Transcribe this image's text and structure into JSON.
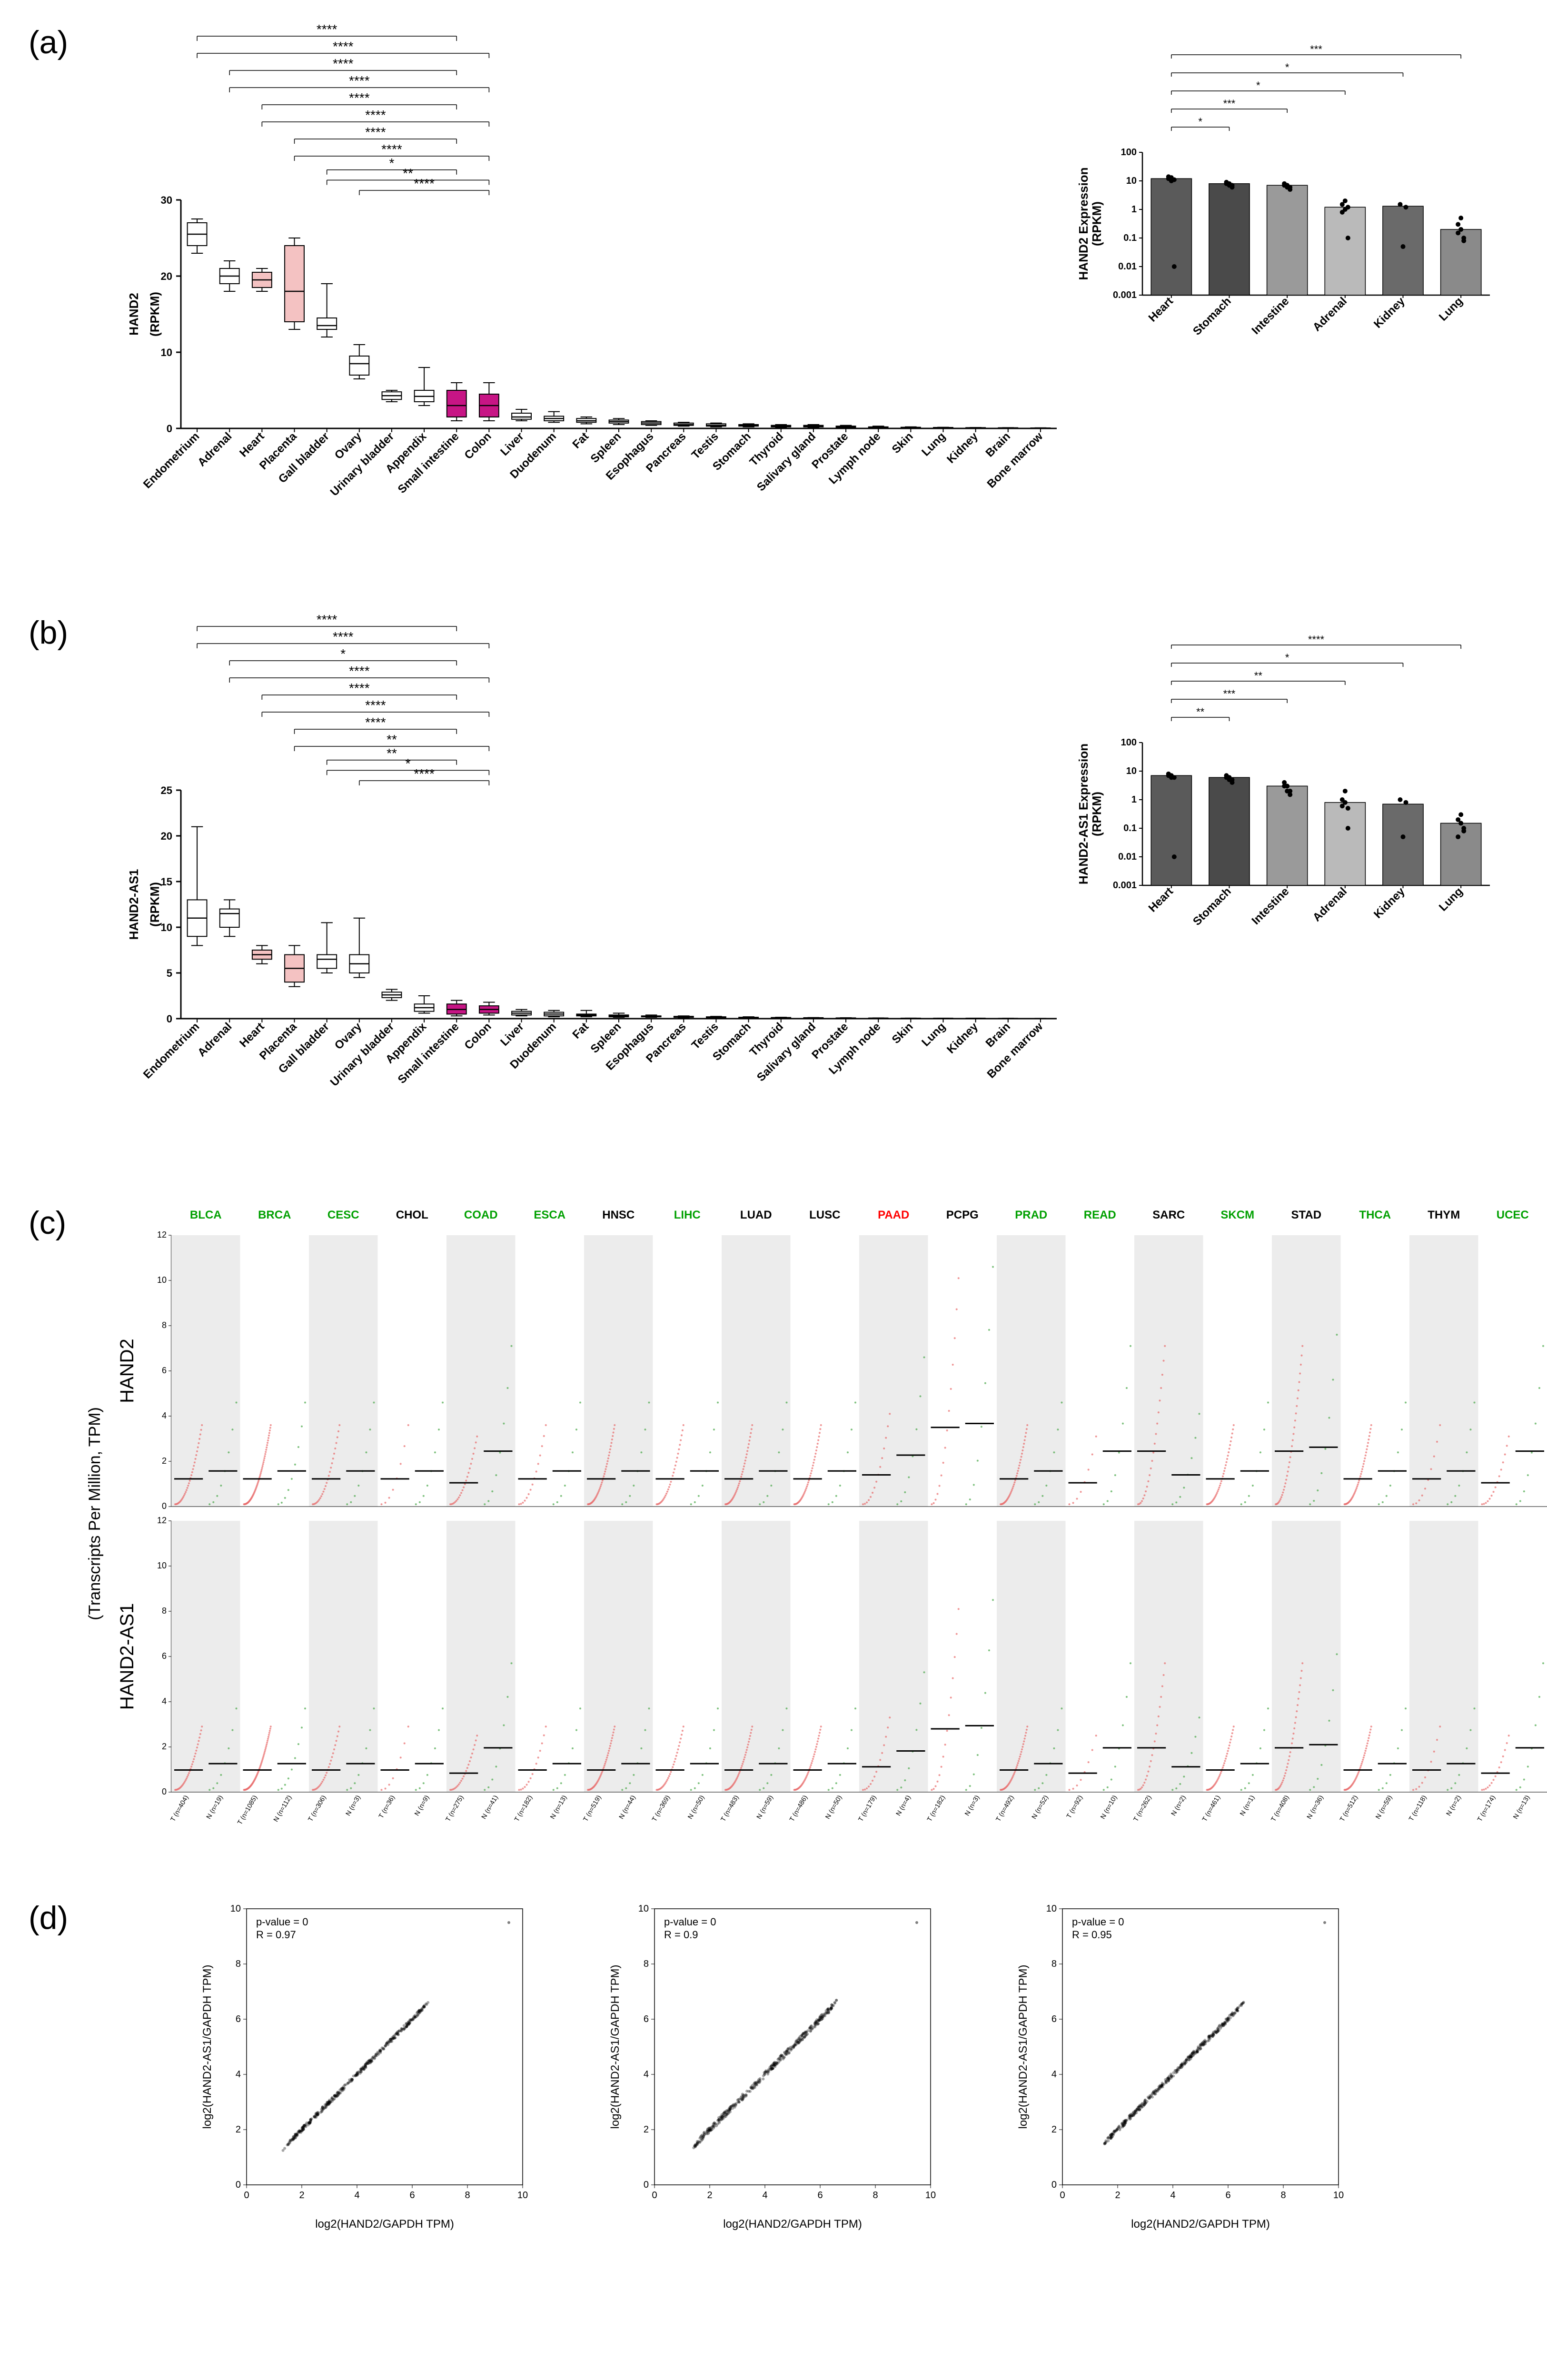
{
  "panelA": {
    "label": "(a)",
    "ylabel": "HAND2\n(RPKM)",
    "ylim": [
      0,
      30
    ],
    "yticks": [
      0,
      10,
      20,
      30
    ],
    "tissues": [
      "Endometrium",
      "Adrenal",
      "Heart",
      "Placenta",
      "Gall bladder",
      "Ovary",
      "Urinary bladder",
      "Appendix",
      "Small intestine",
      "Colon",
      "Liver",
      "Duodenum",
      "Fat",
      "Spleen",
      "Esophagus",
      "Pancreas",
      "Testis",
      "Stomach",
      "Thyroid",
      "Salivary gland",
      "Prostate",
      "Lymph node",
      "Skin",
      "Lung",
      "Kidney",
      "Brain",
      "Bone marrow"
    ],
    "boxes": [
      {
        "q1": 24,
        "med": 25.5,
        "q3": 27,
        "wlo": 23,
        "whi": 27.5,
        "fill": "#ffffff"
      },
      {
        "q1": 19,
        "med": 20,
        "q3": 21,
        "wlo": 18,
        "whi": 22,
        "fill": "#ffffff"
      },
      {
        "q1": 18.5,
        "med": 19.5,
        "q3": 20.5,
        "wlo": 18,
        "whi": 21,
        "fill": "#f4c2c2"
      },
      {
        "q1": 14,
        "med": 18,
        "q3": 24,
        "wlo": 13,
        "whi": 25,
        "fill": "#f4c2c2"
      },
      {
        "q1": 13,
        "med": 13.5,
        "q3": 14.5,
        "wlo": 12,
        "whi": 19,
        "fill": "#ffffff"
      },
      {
        "q1": 7,
        "med": 8.5,
        "q3": 9.5,
        "wlo": 6.5,
        "whi": 11,
        "fill": "#ffffff"
      },
      {
        "q1": 3.8,
        "med": 4.3,
        "q3": 4.8,
        "wlo": 3.5,
        "whi": 5,
        "fill": "#ffffff"
      },
      {
        "q1": 3.5,
        "med": 4.2,
        "q3": 5,
        "wlo": 3,
        "whi": 8,
        "fill": "#ffffff"
      },
      {
        "q1": 1.5,
        "med": 3,
        "q3": 5,
        "wlo": 1,
        "whi": 6,
        "fill": "#c71585"
      },
      {
        "q1": 1.5,
        "med": 3,
        "q3": 4.5,
        "wlo": 1,
        "whi": 6,
        "fill": "#c71585"
      },
      {
        "q1": 1.2,
        "med": 1.5,
        "q3": 2,
        "wlo": 1,
        "whi": 2.5,
        "fill": "#ffffff"
      },
      {
        "q1": 1,
        "med": 1.3,
        "q3": 1.6,
        "wlo": 0.8,
        "whi": 2.2,
        "fill": "#ffffff"
      },
      {
        "q1": 0.8,
        "med": 1,
        "q3": 1.3,
        "wlo": 0.6,
        "whi": 1.5,
        "fill": "#ffffff"
      },
      {
        "q1": 0.7,
        "med": 0.9,
        "q3": 1.1,
        "wlo": 0.5,
        "whi": 1.3,
        "fill": "#ffffff"
      },
      {
        "q1": 0.5,
        "med": 0.7,
        "q3": 0.9,
        "wlo": 0.4,
        "whi": 1,
        "fill": "#ffffff"
      },
      {
        "q1": 0.4,
        "med": 0.5,
        "q3": 0.7,
        "wlo": 0.3,
        "whi": 0.8,
        "fill": "#ffffff"
      },
      {
        "q1": 0.3,
        "med": 0.4,
        "q3": 0.6,
        "wlo": 0.2,
        "whi": 0.7,
        "fill": "#ffffff"
      },
      {
        "q1": 0.3,
        "med": 0.4,
        "q3": 0.5,
        "wlo": 0.2,
        "whi": 0.6,
        "fill": "#ffffff"
      },
      {
        "q1": 0.2,
        "med": 0.3,
        "q3": 0.4,
        "wlo": 0.15,
        "whi": 0.5,
        "fill": "#ffffff"
      },
      {
        "q1": 0.2,
        "med": 0.3,
        "q3": 0.4,
        "wlo": 0.15,
        "whi": 0.5,
        "fill": "#ffffff"
      },
      {
        "q1": 0.15,
        "med": 0.2,
        "q3": 0.3,
        "wlo": 0.1,
        "whi": 0.4,
        "fill": "#ffffff"
      },
      {
        "q1": 0.1,
        "med": 0.15,
        "q3": 0.2,
        "wlo": 0.08,
        "whi": 0.3,
        "fill": "#ffffff"
      },
      {
        "q1": 0.1,
        "med": 0.12,
        "q3": 0.15,
        "wlo": 0.05,
        "whi": 0.2,
        "fill": "#ffffff"
      },
      {
        "q1": 0.08,
        "med": 0.1,
        "q3": 0.12,
        "wlo": 0.05,
        "whi": 0.15,
        "fill": "#ffffff"
      },
      {
        "q1": 0.05,
        "med": 0.08,
        "q3": 0.1,
        "wlo": 0.03,
        "whi": 0.12,
        "fill": "#ffffff"
      },
      {
        "q1": 0.04,
        "med": 0.06,
        "q3": 0.08,
        "wlo": 0.02,
        "whi": 0.1,
        "fill": "#ffffff"
      },
      {
        "q1": 0.02,
        "med": 0.04,
        "q3": 0.06,
        "wlo": 0.01,
        "whi": 0.08,
        "fill": "#ffffff"
      }
    ],
    "sig_brackets": [
      {
        "from": 0,
        "to": 8,
        "level": 9,
        "label": "****"
      },
      {
        "from": 0,
        "to": 9,
        "level": 8,
        "label": "****"
      },
      {
        "from": 1,
        "to": 8,
        "level": 7,
        "label": "****"
      },
      {
        "from": 1,
        "to": 9,
        "level": 6,
        "label": "****"
      },
      {
        "from": 2,
        "to": 8,
        "level": 5,
        "label": "****"
      },
      {
        "from": 2,
        "to": 9,
        "level": 4,
        "label": "****"
      },
      {
        "from": 3,
        "to": 8,
        "level": 3,
        "label": "****"
      },
      {
        "from": 3,
        "to": 9,
        "level": 2,
        "label": "****"
      },
      {
        "from": 4,
        "to": 8,
        "level": 1.2,
        "label": "*"
      },
      {
        "from": 4,
        "to": 9,
        "level": 0.6,
        "label": "**"
      },
      {
        "from": 5,
        "to": 9,
        "level": 0,
        "label": "****"
      }
    ],
    "inset": {
      "ylabel": "HAND2 Expression\n(RPKM)",
      "log_ticks": [
        0.001,
        0.01,
        0.1,
        1,
        10,
        100
      ],
      "bars": [
        "Heart",
        "Stomach",
        "Intestine",
        "Adrenal",
        "Kidney",
        "Lung"
      ],
      "values": [
        12,
        8,
        7,
        1.2,
        1.3,
        0.2
      ],
      "points": [
        [
          14,
          13,
          11,
          12,
          10,
          0.01
        ],
        [
          9,
          8,
          7,
          8,
          7,
          6
        ],
        [
          8,
          7,
          6,
          7,
          6,
          5
        ],
        [
          1.5,
          1,
          0.1,
          0.8,
          2,
          1.2
        ],
        [
          1.5,
          0.05,
          1.2
        ],
        [
          0.3,
          0.2,
          0.1,
          0.15,
          0.5,
          0.08
        ]
      ],
      "sig": [
        {
          "from": 0,
          "to": 5,
          "level": 5,
          "label": "***"
        },
        {
          "from": 0,
          "to": 4,
          "level": 4,
          "label": "*"
        },
        {
          "from": 0,
          "to": 3,
          "level": 3,
          "label": "*"
        },
        {
          "from": 0,
          "to": 2,
          "level": 2,
          "label": "***"
        },
        {
          "from": 0,
          "to": 1,
          "level": 1,
          "label": "*"
        }
      ],
      "colors": [
        "#5a5a5a",
        "#4a4a4a",
        "#9a9a9a",
        "#bababa",
        "#6a6a6a",
        "#8a8a8a"
      ]
    }
  },
  "panelB": {
    "label": "(b)",
    "ylabel": "HAND2-AS1\n(RPKM)",
    "ylim": [
      0,
      25
    ],
    "yticks": [
      0,
      5,
      10,
      15,
      20,
      25
    ],
    "tissues": [
      "Endometrium",
      "Adrenal",
      "Heart",
      "Placenta",
      "Gall bladder",
      "Ovary",
      "Urinary bladder",
      "Appendix",
      "Small intestine",
      "Colon",
      "Liver",
      "Duodenum",
      "Fat",
      "Spleen",
      "Esophagus",
      "Pancreas",
      "Testis",
      "Stomach",
      "Thyroid",
      "Salivary gland",
      "Prostate",
      "Lymph node",
      "Skin",
      "Lung",
      "Kidney",
      "Brain",
      "Bone marrow"
    ],
    "boxes": [
      {
        "q1": 9,
        "med": 11,
        "q3": 13,
        "wlo": 8,
        "whi": 21,
        "fill": "#ffffff"
      },
      {
        "q1": 10,
        "med": 11.5,
        "q3": 12,
        "wlo": 9,
        "whi": 13,
        "fill": "#ffffff"
      },
      {
        "q1": 6.5,
        "med": 7,
        "q3": 7.5,
        "wlo": 6,
        "whi": 8,
        "fill": "#f4c2c2"
      },
      {
        "q1": 4,
        "med": 5.5,
        "q3": 7,
        "wlo": 3.5,
        "whi": 8,
        "fill": "#f4c2c2"
      },
      {
        "q1": 5.5,
        "med": 6.5,
        "q3": 7,
        "wlo": 5,
        "whi": 10.5,
        "fill": "#ffffff"
      },
      {
        "q1": 5,
        "med": 6,
        "q3": 7,
        "wlo": 4.5,
        "whi": 11,
        "fill": "#ffffff"
      },
      {
        "q1": 2.3,
        "med": 2.6,
        "q3": 2.9,
        "wlo": 2,
        "whi": 3.2,
        "fill": "#ffffff"
      },
      {
        "q1": 0.8,
        "med": 1.2,
        "q3": 1.6,
        "wlo": 0.6,
        "whi": 2.5,
        "fill": "#ffffff"
      },
      {
        "q1": 0.5,
        "med": 1,
        "q3": 1.6,
        "wlo": 0.3,
        "whi": 2,
        "fill": "#c71585"
      },
      {
        "q1": 0.6,
        "med": 1,
        "q3": 1.4,
        "wlo": 0.4,
        "whi": 1.8,
        "fill": "#c71585"
      },
      {
        "q1": 0.4,
        "med": 0.6,
        "q3": 0.8,
        "wlo": 0.3,
        "whi": 1,
        "fill": "#ffffff"
      },
      {
        "q1": 0.3,
        "med": 0.5,
        "q3": 0.7,
        "wlo": 0.2,
        "whi": 0.9,
        "fill": "#ffffff"
      },
      {
        "q1": 0.3,
        "med": 0.4,
        "q3": 0.5,
        "wlo": 0.2,
        "whi": 0.9,
        "fill": "#ffffff"
      },
      {
        "q1": 0.2,
        "med": 0.3,
        "q3": 0.4,
        "wlo": 0.15,
        "whi": 0.6,
        "fill": "#ffffff"
      },
      {
        "q1": 0.2,
        "med": 0.25,
        "q3": 0.3,
        "wlo": 0.15,
        "whi": 0.4,
        "fill": "#ffffff"
      },
      {
        "q1": 0.15,
        "med": 0.2,
        "q3": 0.25,
        "wlo": 0.1,
        "whi": 0.3,
        "fill": "#ffffff"
      },
      {
        "q1": 0.1,
        "med": 0.15,
        "q3": 0.2,
        "wlo": 0.08,
        "whi": 0.25,
        "fill": "#ffffff"
      },
      {
        "q1": 0.1,
        "med": 0.12,
        "q3": 0.15,
        "wlo": 0.08,
        "whi": 0.2,
        "fill": "#ffffff"
      },
      {
        "q1": 0.08,
        "med": 0.1,
        "q3": 0.12,
        "wlo": 0.05,
        "whi": 0.15,
        "fill": "#ffffff"
      },
      {
        "q1": 0.06,
        "med": 0.08,
        "q3": 0.1,
        "wlo": 0.04,
        "whi": 0.12,
        "fill": "#ffffff"
      },
      {
        "q1": 0.05,
        "med": 0.06,
        "q3": 0.08,
        "wlo": 0.03,
        "whi": 0.1,
        "fill": "#ffffff"
      },
      {
        "q1": 0.04,
        "med": 0.05,
        "q3": 0.06,
        "wlo": 0.02,
        "whi": 0.08,
        "fill": "#ffffff"
      },
      {
        "q1": 0.03,
        "med": 0.04,
        "q3": 0.05,
        "wlo": 0.02,
        "whi": 0.06,
        "fill": "#ffffff"
      },
      {
        "q1": 0.02,
        "med": 0.03,
        "q3": 0.04,
        "wlo": 0.01,
        "whi": 0.05,
        "fill": "#ffffff"
      },
      {
        "q1": 0.02,
        "med": 0.03,
        "q3": 0.04,
        "wlo": 0.01,
        "whi": 0.05,
        "fill": "#ffffff"
      },
      {
        "q1": 0.01,
        "med": 0.02,
        "q3": 0.03,
        "wlo": 0.005,
        "whi": 0.04,
        "fill": "#ffffff"
      },
      {
        "q1": 0.01,
        "med": 0.015,
        "q3": 0.02,
        "wlo": 0.005,
        "whi": 0.03,
        "fill": "#ffffff"
      }
    ],
    "sig_brackets": [
      {
        "from": 0,
        "to": 8,
        "level": 9,
        "label": "****"
      },
      {
        "from": 0,
        "to": 9,
        "level": 8,
        "label": "****"
      },
      {
        "from": 1,
        "to": 8,
        "level": 7,
        "label": "*"
      },
      {
        "from": 1,
        "to": 9,
        "level": 6,
        "label": "****"
      },
      {
        "from": 2,
        "to": 8,
        "level": 5,
        "label": "****"
      },
      {
        "from": 2,
        "to": 9,
        "level": 4,
        "label": "****"
      },
      {
        "from": 3,
        "to": 8,
        "level": 3,
        "label": "****"
      },
      {
        "from": 3,
        "to": 9,
        "level": 2,
        "label": "**"
      },
      {
        "from": 4,
        "to": 8,
        "level": 1.2,
        "label": "**"
      },
      {
        "from": 4,
        "to": 9,
        "level": 0.6,
        "label": "*"
      },
      {
        "from": 5,
        "to": 9,
        "level": 0,
        "label": "****"
      }
    ],
    "inset": {
      "ylabel": "HAND2-AS1 Expression\n(RPKM)",
      "log_ticks": [
        0.001,
        0.01,
        0.1,
        1,
        10,
        100
      ],
      "bars": [
        "Heart",
        "Stomach",
        "Intestine",
        "Adrenal",
        "Kidney",
        "Lung"
      ],
      "values": [
        7,
        6,
        3,
        0.8,
        0.7,
        0.15
      ],
      "points": [
        [
          8,
          7,
          6,
          7,
          6,
          0.01
        ],
        [
          7,
          6,
          5,
          6,
          5,
          4
        ],
        [
          4,
          3,
          2,
          3,
          2,
          1.5
        ],
        [
          1,
          0.8,
          0.1,
          0.6,
          2,
          0.5
        ],
        [
          1,
          0.05,
          0.8
        ],
        [
          0.2,
          0.15,
          0.1,
          0.05,
          0.3,
          0.08
        ]
      ],
      "sig": [
        {
          "from": 0,
          "to": 5,
          "level": 5,
          "label": "****"
        },
        {
          "from": 0,
          "to": 4,
          "level": 4,
          "label": "*"
        },
        {
          "from": 0,
          "to": 3,
          "level": 3,
          "label": "**"
        },
        {
          "from": 0,
          "to": 2,
          "level": 2,
          "label": "***"
        },
        {
          "from": 0,
          "to": 1,
          "level": 1,
          "label": "**"
        }
      ],
      "colors": [
        "#5a5a5a",
        "#4a4a4a",
        "#9a9a9a",
        "#bababa",
        "#6a6a6a",
        "#8a8a8a"
      ]
    }
  },
  "panelC": {
    "label": "(c)",
    "ylabel_shared": "(Transcripts Per Million, TPM)",
    "row_labels": [
      "HAND2",
      "HAND2-AS1"
    ],
    "cancers": [
      {
        "code": "BLCA",
        "color": "#00a000",
        "nT": 404,
        "nN": 19
      },
      {
        "code": "BRCA",
        "color": "#00a000",
        "nT": 1085,
        "nN": 112
      },
      {
        "code": "CESC",
        "color": "#00a000",
        "nT": 306,
        "nN": 3
      },
      {
        "code": "CHOL",
        "color": "#000000",
        "nT": 36,
        "nN": 9
      },
      {
        "code": "COAD",
        "color": "#00a000",
        "nT": 275,
        "nN": 41
      },
      {
        "code": "ESCA",
        "color": "#00a000",
        "nT": 182,
        "nN": 13
      },
      {
        "code": "HNSC",
        "color": "#000000",
        "nT": 519,
        "nN": 44
      },
      {
        "code": "LIHC",
        "color": "#00a000",
        "nT": 369,
        "nN": 50
      },
      {
        "code": "LUAD",
        "color": "#000000",
        "nT": 483,
        "nN": 59
      },
      {
        "code": "LUSC",
        "color": "#000000",
        "nT": 486,
        "nN": 50
      },
      {
        "code": "PAAD",
        "color": "#ff0000",
        "nT": 179,
        "nN": 4
      },
      {
        "code": "PCPG",
        "color": "#000000",
        "nT": 182,
        "nN": 3
      },
      {
        "code": "PRAD",
        "color": "#00a000",
        "nT": 492,
        "nN": 52
      },
      {
        "code": "READ",
        "color": "#00a000",
        "nT": 92,
        "nN": 10
      },
      {
        "code": "SARC",
        "color": "#000000",
        "nT": 262,
        "nN": 2
      },
      {
        "code": "SKCM",
        "color": "#00a000",
        "nT": 461,
        "nN": 1
      },
      {
        "code": "STAD",
        "color": "#000000",
        "nT": 408,
        "nN": 36
      },
      {
        "code": "THCA",
        "color": "#00a000",
        "nT": 512,
        "nN": 59
      },
      {
        "code": "THYM",
        "color": "#000000",
        "nT": 118,
        "nN": 2
      },
      {
        "code": "UCEC",
        "color": "#00a000",
        "nT": 174,
        "nN": 13
      }
    ],
    "ylim": [
      0,
      12
    ],
    "yticks": [
      0,
      2,
      4,
      6,
      8,
      10,
      12
    ]
  },
  "panelD": {
    "label": "(d)",
    "xlabel": "log2(HAND2/GAPDH TPM)",
    "ylabel": "log2(HAND2-AS1/GAPDH TPM)",
    "plots": [
      {
        "pvalue": "p-value = 0",
        "R": "R = 0.97"
      },
      {
        "pvalue": "p-value = 0",
        "R": "R = 0.9"
      },
      {
        "pvalue": "p-value = 0",
        "R": "R = 0.95"
      }
    ],
    "xlim": [
      0,
      10
    ],
    "ylim": [
      0,
      10
    ]
  }
}
